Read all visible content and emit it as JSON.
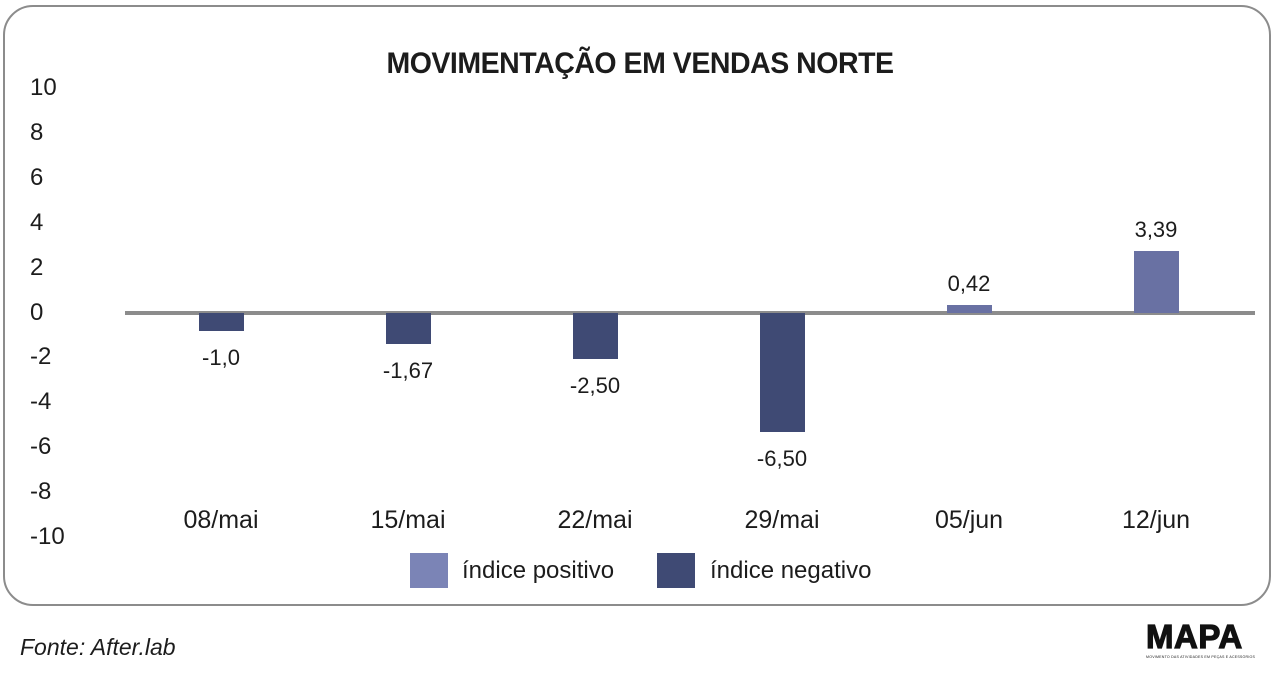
{
  "chart_data": {
    "type": "bar",
    "title": "MOVIMENTAÇÃO EM VENDAS NORTE",
    "categories": [
      "08/mai",
      "15/mai",
      "22/mai",
      "29/mai",
      "05/jun",
      "12/jun"
    ],
    "values": [
      -1.0,
      -1.67,
      -2.5,
      -6.5,
      0.42,
      3.39
    ],
    "value_labels": [
      "-1,0",
      "-1,67",
      "-2,50",
      "-6,50",
      "0,42",
      "3,39"
    ],
    "xlabel": "",
    "ylabel": "",
    "ylim": [
      -10,
      10
    ],
    "yticks": [
      10,
      8,
      6,
      4,
      2,
      0,
      -2,
      -4,
      -6,
      -8,
      -10
    ],
    "grid": false,
    "legend_position": "bottom",
    "series_colors": {
      "positive": "#6971a3",
      "negative": "#3f4a74"
    }
  },
  "legend": {
    "items": [
      {
        "name": "positive",
        "label": "índice positivo",
        "color": "#7b84b6"
      },
      {
        "name": "negative",
        "label": "índice negativo",
        "color": "#3f4a74"
      }
    ]
  },
  "footer": {
    "source": "Fonte: After.lab",
    "logo_text": "MAPA",
    "logo_tagline": "MOVIMENTO DAS ATIVIDADES EM PEÇAS E ACESSÓRIOS"
  },
  "colors": {
    "axis_line": "#8c8c8c",
    "frame": "#8c8c8c",
    "text": "#1c1c1c"
  }
}
